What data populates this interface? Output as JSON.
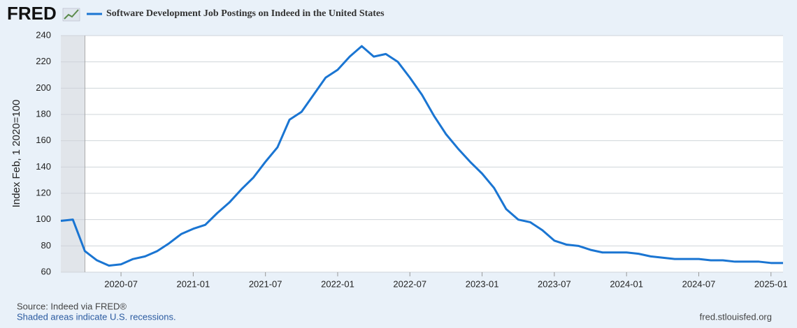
{
  "chart_data": {
    "type": "line",
    "logo": "FRED",
    "ylabel": "Index Feb, 1 2020=100",
    "source": "Source: Indeed via FRED®",
    "note": "Shaded areas indicate U.S. recessions.",
    "site": "fred.stlouisfed.org",
    "x": [
      "2020-02",
      "2020-03",
      "2020-04",
      "2020-05",
      "2020-06",
      "2020-07",
      "2020-08",
      "2020-09",
      "2020-10",
      "2020-11",
      "2020-12",
      "2021-01",
      "2021-02",
      "2021-03",
      "2021-04",
      "2021-05",
      "2021-06",
      "2021-07",
      "2021-08",
      "2021-09",
      "2021-10",
      "2021-11",
      "2021-12",
      "2022-01",
      "2022-02",
      "2022-03",
      "2022-04",
      "2022-05",
      "2022-06",
      "2022-07",
      "2022-08",
      "2022-09",
      "2022-10",
      "2022-11",
      "2022-12",
      "2023-01",
      "2023-02",
      "2023-03",
      "2023-04",
      "2023-05",
      "2023-06",
      "2023-07",
      "2023-08",
      "2023-09",
      "2023-10",
      "2023-11",
      "2023-12",
      "2024-01",
      "2024-02",
      "2024-03",
      "2024-04",
      "2024-05",
      "2024-06",
      "2024-07",
      "2024-08",
      "2024-09",
      "2024-10",
      "2024-11",
      "2024-12",
      "2025-01",
      "2025-02"
    ],
    "series": [
      {
        "name": "Software Development Job Postings on Indeed in the United States",
        "color": "#1a75d2",
        "values": [
          99,
          100,
          76,
          69,
          65,
          66,
          70,
          72,
          76,
          82,
          89,
          93,
          96,
          105,
          113,
          123,
          132,
          144,
          155,
          176,
          182,
          195,
          208,
          214,
          224,
          232,
          224,
          226,
          220,
          208,
          195,
          179,
          165,
          154,
          144,
          135,
          124,
          108,
          100,
          98,
          92,
          84,
          81,
          80,
          77,
          75,
          75,
          75,
          74,
          72,
          71,
          70,
          70,
          70,
          69,
          69,
          68,
          68,
          68,
          67,
          67
        ]
      }
    ],
    "xlim": [
      "2020-02",
      "2025-02"
    ],
    "xticks": [
      "2020-07",
      "2021-01",
      "2021-07",
      "2022-01",
      "2022-07",
      "2023-01",
      "2023-07",
      "2024-01",
      "2024-07",
      "2025-01"
    ],
    "ylim": [
      60,
      240
    ],
    "yticks": [
      60,
      80,
      100,
      120,
      140,
      160,
      180,
      200,
      220,
      240
    ],
    "grid": true,
    "recessions": [
      {
        "start": "2020-02",
        "end": "2020-04"
      }
    ]
  }
}
